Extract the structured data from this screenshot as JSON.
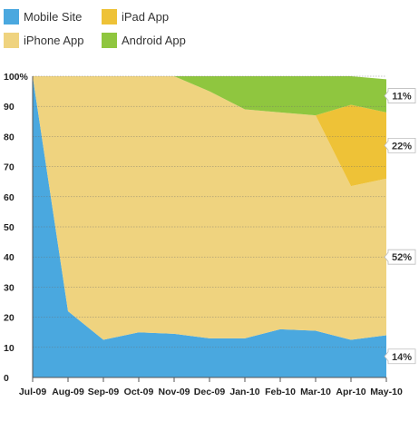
{
  "chart_data": {
    "type": "area",
    "stacked": true,
    "percent": true,
    "categories": [
      "Jul-09",
      "Aug-09",
      "Sep-09",
      "Oct-09",
      "Nov-09",
      "Dec-09",
      "Jan-10",
      "Feb-10",
      "Mar-10",
      "Apr-10",
      "May-10"
    ],
    "ylim": [
      0,
      100
    ],
    "yticks": [
      "0",
      "10",
      "20",
      "30",
      "40",
      "50",
      "60",
      "70",
      "80",
      "90",
      "100%"
    ],
    "ytick_values": [
      0,
      10,
      20,
      30,
      40,
      50,
      60,
      70,
      80,
      90,
      100
    ],
    "grid": true,
    "legend_position": "top-left",
    "series": [
      {
        "name": "Mobile Site",
        "color": "#4aa8df",
        "values": [
          100,
          22,
          12.5,
          15,
          14.5,
          13,
          13,
          16,
          15.5,
          12.5,
          14
        ]
      },
      {
        "name": "iPhone App",
        "color": "#efd37f",
        "values": [
          0,
          78,
          87.5,
          85,
          85.5,
          82,
          76,
          72,
          71.5,
          51,
          52
        ]
      },
      {
        "name": "iPad App",
        "color": "#eec237",
        "values": [
          0,
          0,
          0,
          0,
          0,
          0,
          0,
          0,
          0,
          27,
          22
        ]
      },
      {
        "name": "Android App",
        "color": "#8fc63f",
        "values": [
          0,
          0,
          0,
          0,
          0,
          5,
          11,
          12,
          13,
          9.5,
          11
        ]
      }
    ],
    "legend": [
      {
        "name": "Mobile Site",
        "color": "#4aa8df"
      },
      {
        "name": "iPad App",
        "color": "#eec237"
      },
      {
        "name": "iPhone App",
        "color": "#efd37f"
      },
      {
        "name": "Android App",
        "color": "#8fc63f"
      }
    ],
    "end_labels": [
      {
        "series": "Android App",
        "text": "11%"
      },
      {
        "series": "iPad App",
        "text": "22%"
      },
      {
        "series": "iPhone App",
        "text": "52%"
      },
      {
        "series": "Mobile Site",
        "text": "14%"
      }
    ]
  }
}
